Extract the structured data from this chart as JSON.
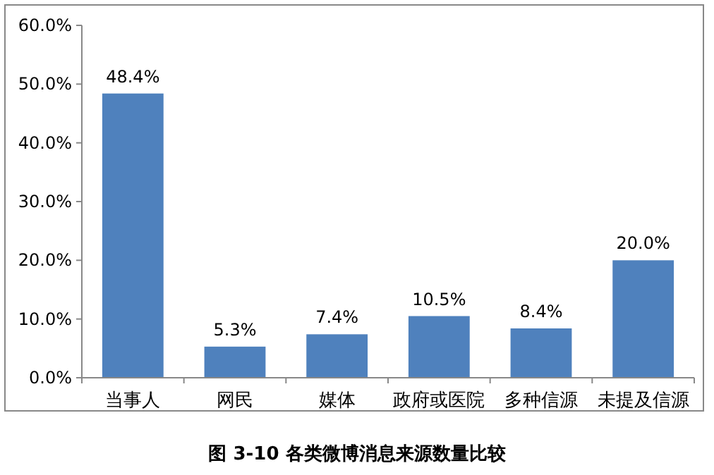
{
  "chart_data": {
    "type": "bar",
    "title": "图 3-10  各类微博消息来源数量比较",
    "categories": [
      "当事人",
      "网民",
      "媒体",
      "政府或医院",
      "多种信源",
      "未提及信源"
    ],
    "values": [
      48.4,
      5.3,
      7.4,
      10.5,
      8.4,
      20.0
    ],
    "value_labels": [
      "48.4%",
      "5.3%",
      "7.4%",
      "10.5%",
      "8.4%",
      "20.0%"
    ],
    "color": "#4f81bd",
    "ylim": [
      0,
      60
    ],
    "yticks": [
      {
        "value": 0,
        "label": "0.0%"
      },
      {
        "value": 10,
        "label": "10.0%"
      },
      {
        "value": 20,
        "label": "20.0%"
      },
      {
        "value": 30,
        "label": "30.0%"
      },
      {
        "value": 40,
        "label": "40.0%"
      },
      {
        "value": 50,
        "label": "50.0%"
      },
      {
        "value": 60,
        "label": "60.0%"
      }
    ],
    "grid": false
  }
}
